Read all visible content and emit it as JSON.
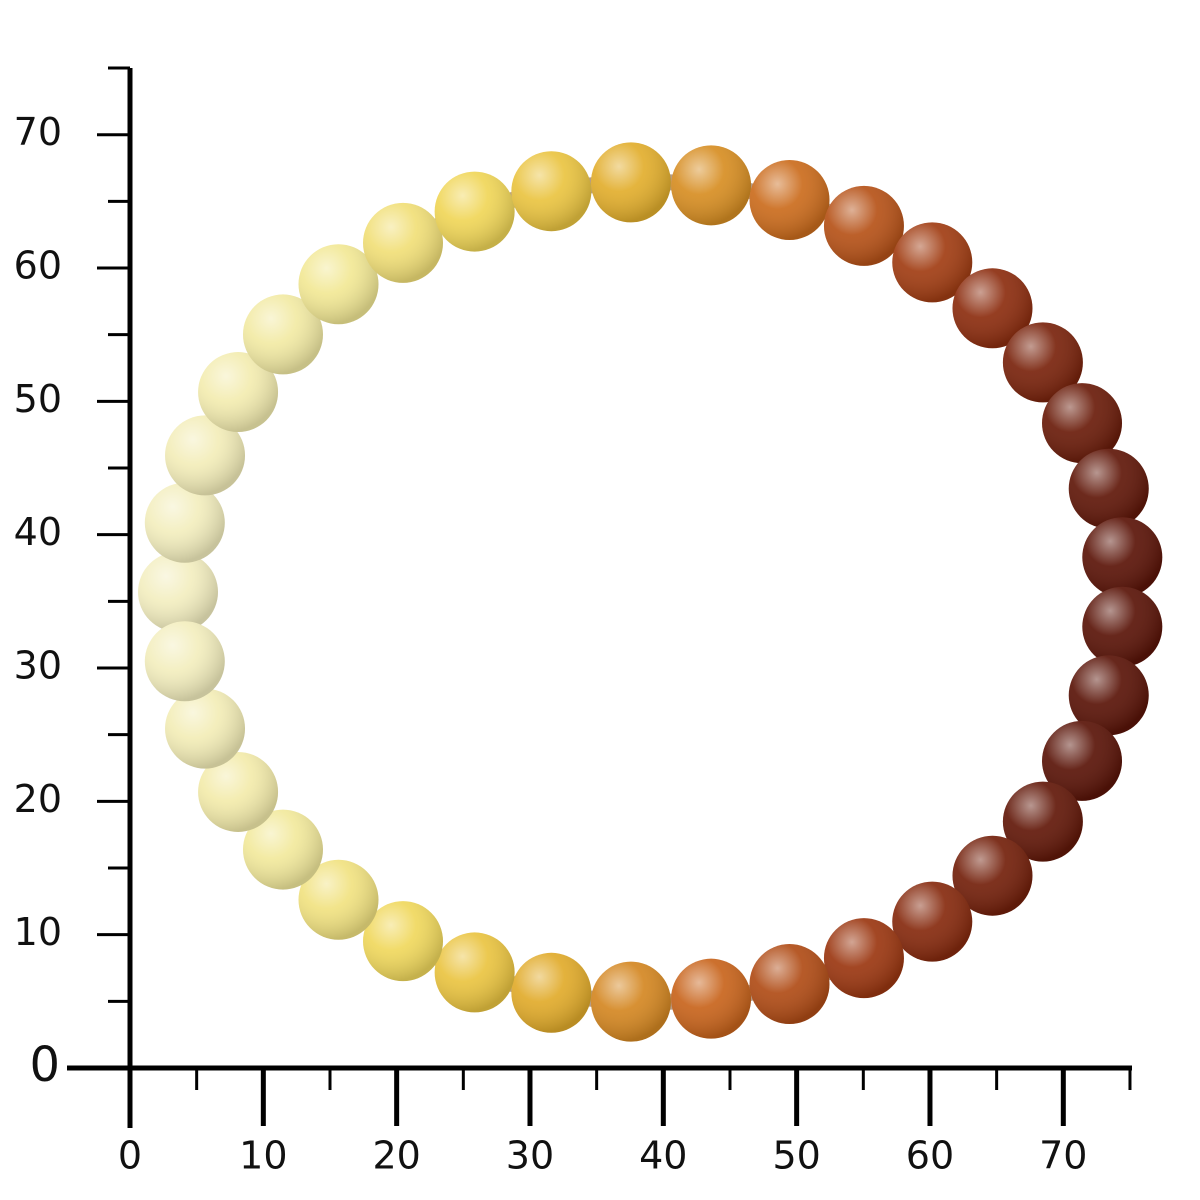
{
  "x_axis": {
    "labels": [
      0,
      10,
      20,
      30,
      40,
      50,
      60,
      70
    ]
  },
  "y_axis": {
    "labels": [
      0,
      10,
      20,
      30,
      40,
      50,
      60,
      70
    ]
  }
}
